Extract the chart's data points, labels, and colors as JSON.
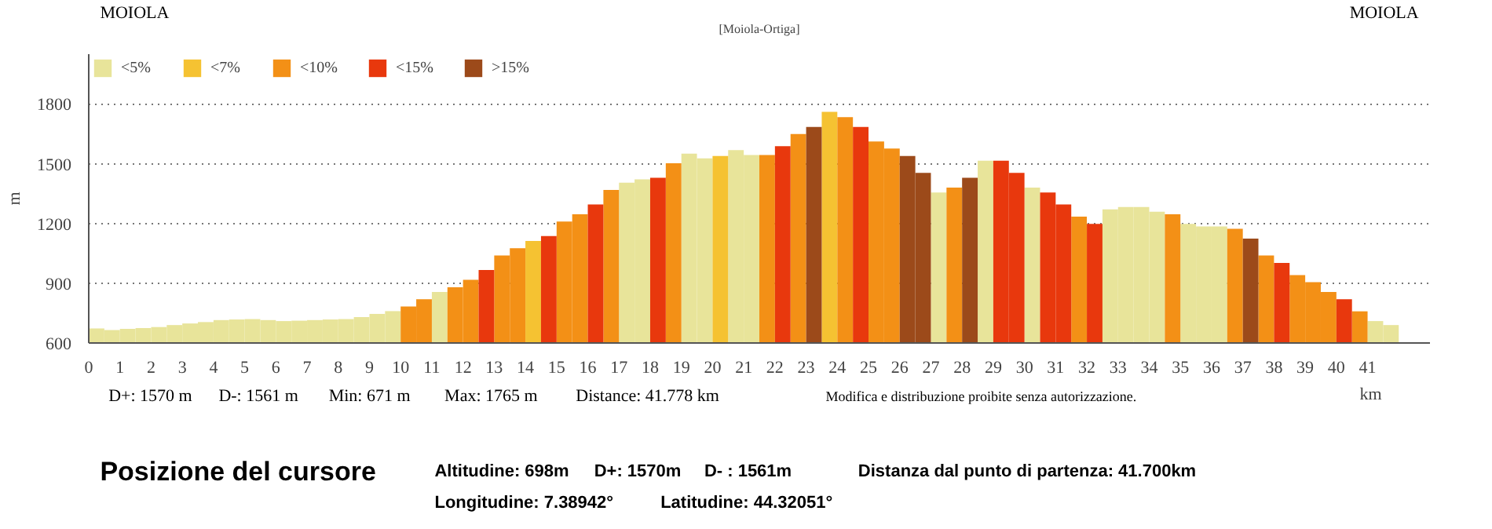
{
  "chart_data": {
    "type": "bar",
    "title": "[Moiola-Ortiga]",
    "xlabel": "km",
    "ylabel": "m",
    "xlim": [
      0,
      43
    ],
    "ylim": [
      600,
      2050
    ],
    "xticks": [
      0,
      1,
      2,
      3,
      4,
      5,
      6,
      7,
      8,
      9,
      10,
      11,
      12,
      13,
      14,
      15,
      16,
      17,
      18,
      19,
      20,
      21,
      22,
      23,
      24,
      25,
      26,
      27,
      28,
      29,
      30,
      31,
      32,
      33,
      34,
      35,
      36,
      37,
      38,
      39,
      40,
      41
    ],
    "yticks": [
      600,
      900,
      1200,
      1500,
      1800
    ],
    "grid": "y",
    "legend": "top left",
    "series": [
      {
        "name": "<5%",
        "color": "#e8e49a",
        "x": [
          0.25,
          0.75,
          1.25,
          1.75,
          2.25,
          2.75,
          3.25,
          3.75,
          4.25,
          4.75,
          5.25,
          5.75,
          6.25,
          6.75,
          7.25,
          7.75,
          8.25,
          8.75,
          9.25,
          9.75,
          11.25,
          17.25,
          17.75,
          19.25,
          19.75,
          20.75,
          21.25,
          27.25,
          28.75,
          30.25,
          32.75,
          33.25,
          33.75,
          34.25,
          35.25,
          35.75,
          36.25,
          41.25,
          41.75
        ],
        "values": [
          673,
          665,
          671,
          675,
          680,
          690,
          698,
          705,
          715,
          718,
          720,
          715,
          710,
          712,
          715,
          718,
          720,
          730,
          746,
          760,
          856,
          1405,
          1422,
          1551,
          1527,
          1568,
          1544,
          1356,
          1515,
          1380,
          1271,
          1283,
          1283,
          1259,
          1198,
          1185,
          1185,
          710,
          690
        ]
      },
      {
        "name": "<7%",
        "color": "#f5c232",
        "x": [
          14.25,
          20.25,
          23.75
        ],
        "values": [
          1112,
          1539,
          1760
        ]
      },
      {
        "name": "<10%",
        "color": "#f39016",
        "x": [
          10.25,
          10.75,
          11.75,
          12.25,
          13.25,
          13.75,
          15.25,
          15.75,
          16.75,
          18.75,
          21.75,
          22.75,
          24.25,
          25.25,
          25.75,
          27.75,
          31.75,
          34.75,
          36.75,
          37.75,
          38.75,
          39.25,
          39.75,
          40.75
        ],
        "values": [
          783,
          820,
          880,
          917,
          1039,
          1076,
          1210,
          1246,
          1368,
          1502,
          1544,
          1649,
          1734,
          1612,
          1576,
          1380,
          1234,
          1246,
          1173,
          1039,
          941,
          905,
          856,
          759
        ]
      },
      {
        "name": "<15%",
        "color": "#e8380d",
        "x": [
          12.75,
          14.75,
          16.25,
          18.25,
          22.25,
          24.75,
          29.25,
          29.75,
          30.75,
          31.25,
          32.25,
          38.25,
          40.25
        ],
        "values": [
          966,
          1137,
          1295,
          1429,
          1588,
          1685,
          1515,
          1454,
          1356,
          1295,
          1198,
          1002,
          820
        ]
      },
      {
        "name": ">15%",
        "color": "#9c4a1a",
        "x": [
          23.25,
          26.25,
          26.75,
          28.25,
          37.25
        ],
        "values": [
          1685,
          1539,
          1454,
          1429,
          1124
        ]
      }
    ],
    "annotations": [
      "MOIOLA",
      "MOIOLA",
      "D+: 1570 m",
      "D-: 1561 m",
      "Min: 671 m",
      "Max: 1765 m",
      "Distance: 41.778 km",
      "Modifica e distribuzione proibite senza autorizzazione.",
      "Posizione del cursore",
      "Altitudine: 698m",
      "D+: 1570m",
      "D- : 1561m",
      "Distanza dal punto di partenza: 41.700km",
      "Longitudine: 7.38942°",
      "Latitudine: 44.32051°"
    ]
  }
}
